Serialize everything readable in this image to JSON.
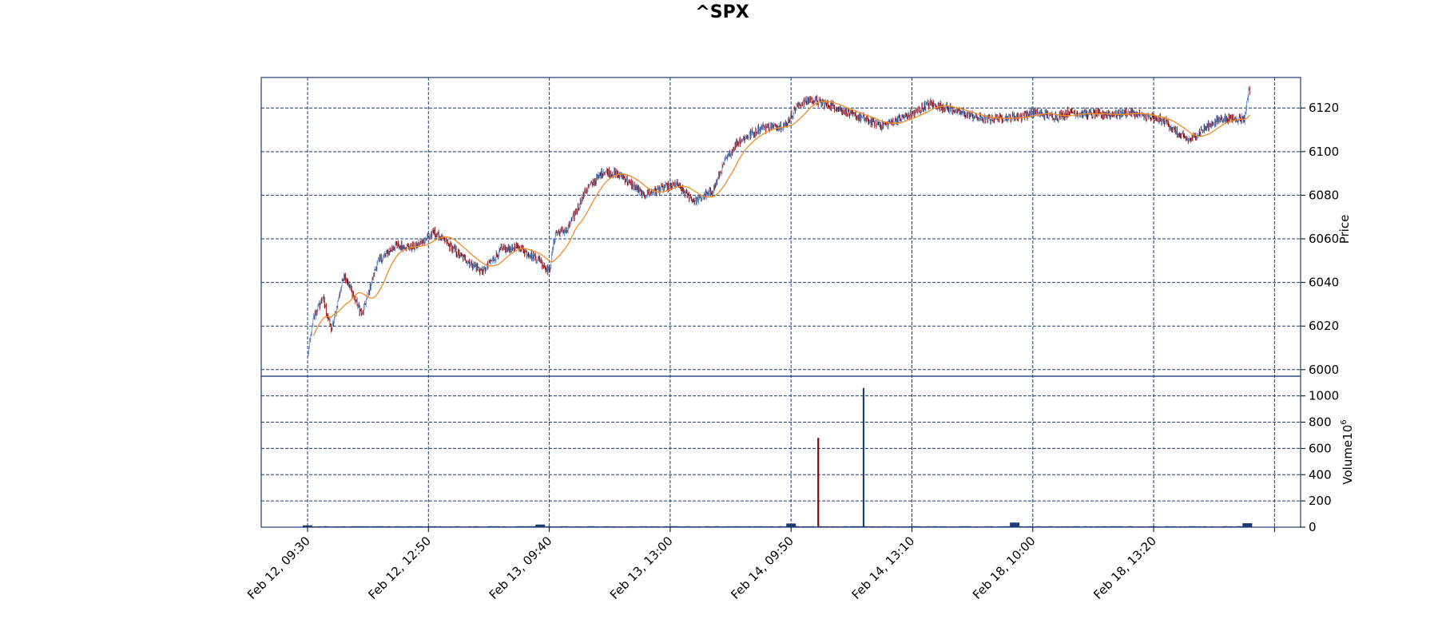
{
  "chart_data": {
    "type": "candlestick",
    "title": "^SPX",
    "price_panel": {
      "ylabel": "Price",
      "ylim": [
        5997,
        6134
      ],
      "yticks": [
        6000,
        6020,
        6040,
        6060,
        6080,
        6100,
        6120
      ],
      "grid": true,
      "moving_average": true
    },
    "volume_panel": {
      "ylabel": "Volume",
      "ylabel_exponent": "6",
      "ylim": [
        0,
        1150
      ],
      "yticks": [
        0,
        200,
        400,
        600,
        800,
        1000
      ],
      "grid": true
    },
    "x_tick_labels": [
      "Feb 12, 09:30",
      "Feb 12, 12:50",
      "Feb 13, 09:40",
      "Feb 13, 13:00",
      "Feb 14, 09:50",
      "Feb 14, 13:10",
      "Feb 18, 10:00",
      "Feb 18, 13:20",
      ""
    ],
    "x_tick_index": [
      0,
      200,
      400,
      600,
      800,
      1000,
      1200,
      1400,
      1600
    ],
    "bar_count": 1560,
    "price_path": [
      [
        0,
        6006
      ],
      [
        10,
        6024
      ],
      [
        25,
        6033
      ],
      [
        40,
        6018
      ],
      [
        60,
        6044
      ],
      [
        90,
        6025
      ],
      [
        115,
        6049
      ],
      [
        145,
        6057
      ],
      [
        175,
        6056
      ],
      [
        210,
        6063
      ],
      [
        250,
        6053
      ],
      [
        290,
        6045
      ],
      [
        320,
        6055
      ],
      [
        350,
        6056
      ],
      [
        385,
        6050
      ],
      [
        400,
        6045
      ],
      [
        410,
        6063
      ],
      [
        430,
        6064
      ],
      [
        460,
        6082
      ],
      [
        490,
        6091
      ],
      [
        520,
        6089
      ],
      [
        555,
        6080
      ],
      [
        585,
        6083
      ],
      [
        610,
        6085
      ],
      [
        640,
        6077
      ],
      [
        670,
        6082
      ],
      [
        690,
        6095
      ],
      [
        710,
        6104
      ],
      [
        750,
        6111
      ],
      [
        790,
        6112
      ],
      [
        810,
        6121
      ],
      [
        830,
        6124
      ],
      [
        870,
        6121
      ],
      [
        900,
        6117
      ],
      [
        950,
        6112
      ],
      [
        980,
        6115
      ],
      [
        1000,
        6117
      ],
      [
        1030,
        6122
      ],
      [
        1060,
        6120
      ],
      [
        1090,
        6117
      ],
      [
        1120,
        6115
      ],
      [
        1180,
        6116
      ],
      [
        1200,
        6118
      ],
      [
        1240,
        6116
      ],
      [
        1260,
        6118
      ],
      [
        1300,
        6117
      ],
      [
        1330,
        6117
      ],
      [
        1360,
        6118
      ],
      [
        1400,
        6115
      ],
      [
        1420,
        6114
      ],
      [
        1440,
        6108
      ],
      [
        1460,
        6105
      ],
      [
        1480,
        6110
      ],
      [
        1510,
        6115
      ],
      [
        1550,
        6115
      ],
      [
        1557,
        6128
      ]
    ],
    "volume_spikes": [
      {
        "index": 845,
        "value": 680,
        "direction": "down"
      },
      {
        "index": 920,
        "value": 1060,
        "direction": "up"
      }
    ],
    "volume_bumps": [
      {
        "index": 0,
        "value": 14
      },
      {
        "index": 385,
        "value": 20
      },
      {
        "index": 800,
        "value": 28
      },
      {
        "index": 1170,
        "value": 35
      },
      {
        "index": 1555,
        "value": 30
      }
    ],
    "colors": {
      "up": "#1f3b73",
      "down": "#8b0000",
      "wick": "#5b87c5",
      "ma": "#f08c28",
      "grid": "#1f3b73",
      "frame": "#1f3b73"
    }
  }
}
